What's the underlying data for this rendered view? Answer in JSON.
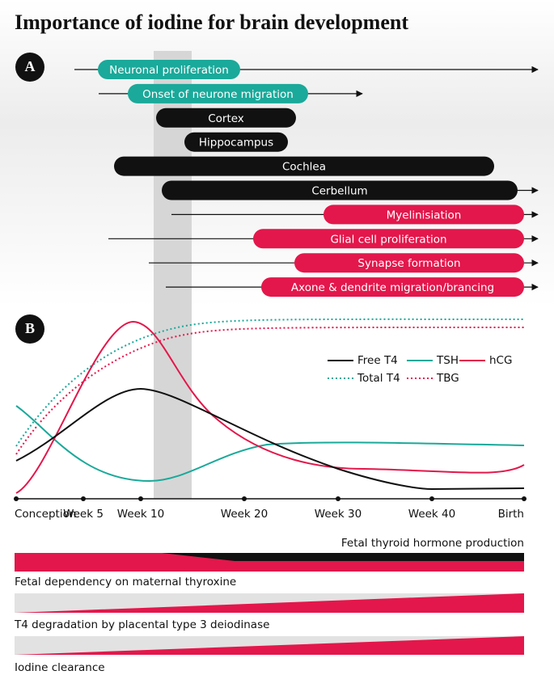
{
  "header": {
    "title": "Importance of iodine for brain development"
  },
  "panel_a": {
    "label": "A",
    "rows": [
      "Neuronal proliferation",
      "Onset of neurone migration",
      "Cortex",
      "Hippocampus",
      "Cochlea",
      "Cerbellum",
      "Myelinisiation",
      "Glial cell proliferation",
      "Synapse formation",
      "Axone & dendrite migration/brancing"
    ]
  },
  "panel_b": {
    "label": "B",
    "legend": [
      "Free T4",
      "TSH",
      "hCG",
      "Total T4",
      "TBG"
    ],
    "x_labels": [
      "Conception",
      "Week 5",
      "Week 10",
      "Week 20",
      "Week 30",
      "Week 40",
      "Birth"
    ]
  },
  "bands": {
    "labels": [
      "Fetal thyroid hormone production",
      "Fetal dependency on maternal thyroxine",
      "T4 degradation by placental type 3 deiodinase",
      "Iodine clearance"
    ]
  }
}
